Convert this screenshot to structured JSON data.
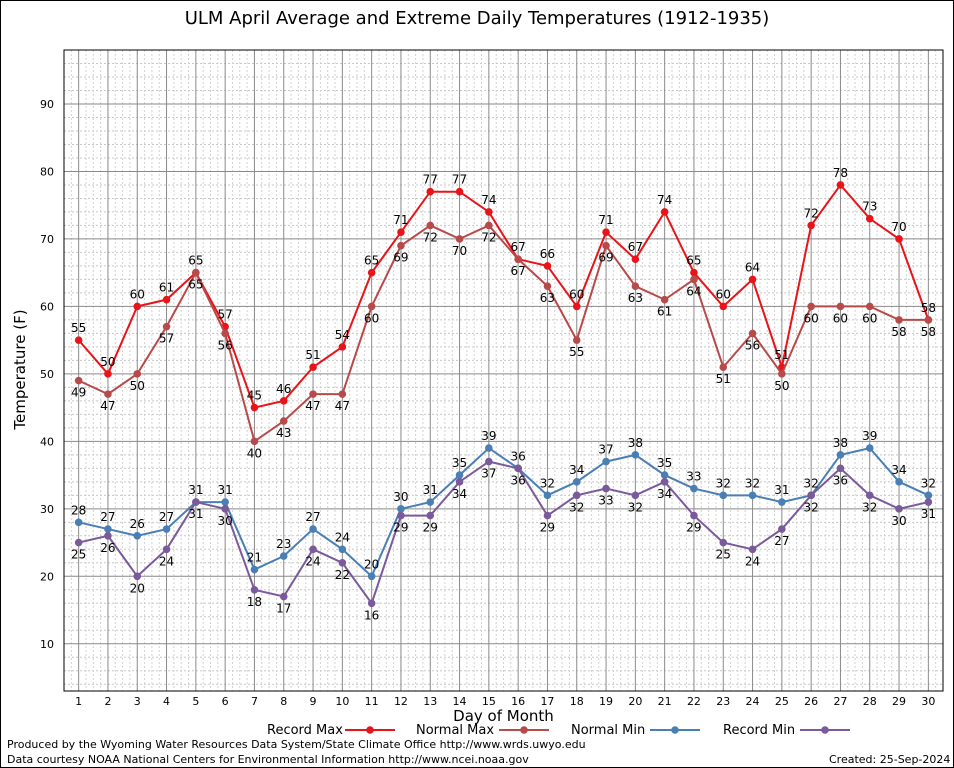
{
  "chart_data": {
    "type": "line",
    "title": "ULM April Average and Extreme Daily Temperatures (1912-1935)",
    "xlabel": "Day of Month",
    "ylabel": "Temperature (F)",
    "x": [
      1,
      2,
      3,
      4,
      5,
      6,
      7,
      8,
      9,
      10,
      11,
      12,
      13,
      14,
      15,
      16,
      17,
      18,
      19,
      20,
      21,
      22,
      23,
      24,
      25,
      26,
      27,
      28,
      29,
      30
    ],
    "xlim": [
      0.5,
      30.5
    ],
    "ylim": [
      3,
      98
    ],
    "yticks": [
      10,
      20,
      30,
      40,
      50,
      60,
      70,
      80,
      90
    ],
    "grid": true,
    "legend_position": "bottom",
    "series": [
      {
        "name": "Record Max",
        "color": "#e8141a",
        "values": [
          55,
          50,
          60,
          61,
          65,
          57,
          45,
          46,
          51,
          54,
          65,
          71,
          77,
          77,
          74,
          67,
          66,
          60,
          71,
          67,
          74,
          65,
          60,
          64,
          51,
          72,
          78,
          73,
          70,
          58
        ]
      },
      {
        "name": "Normal Max",
        "color": "#b84a4a",
        "values": [
          49,
          47,
          50,
          57,
          65,
          56,
          40,
          43,
          47,
          47,
          60,
          69,
          72,
          70,
          72,
          67,
          63,
          55,
          69,
          63,
          61,
          64,
          51,
          56,
          50,
          60,
          60,
          60,
          58,
          58
        ]
      },
      {
        "name": "Normal Min",
        "color": "#4a7fb5",
        "values": [
          28,
          27,
          26,
          27,
          31,
          31,
          21,
          23,
          27,
          24,
          20,
          30,
          31,
          35,
          39,
          36,
          32,
          34,
          37,
          38,
          35,
          33,
          32,
          32,
          31,
          32,
          38,
          39,
          34,
          32
        ]
      },
      {
        "name": "Record Min",
        "color": "#7a5a9a",
        "values": [
          25,
          26,
          20,
          24,
          31,
          30,
          18,
          17,
          24,
          22,
          16,
          29,
          29,
          34,
          37,
          36,
          29,
          32,
          33,
          32,
          34,
          29,
          25,
          24,
          27,
          32,
          36,
          32,
          30,
          31
        ]
      }
    ]
  },
  "footer": {
    "produced": "Produced by the Wyoming Water Resources Data System/State Climate Office http://www.wrds.uwyo.edu",
    "courtesy": "Data courtesy NOAA National Centers for Environmental Information http://www.ncei.noaa.gov",
    "created": "Created:  25-Sep-2024"
  }
}
